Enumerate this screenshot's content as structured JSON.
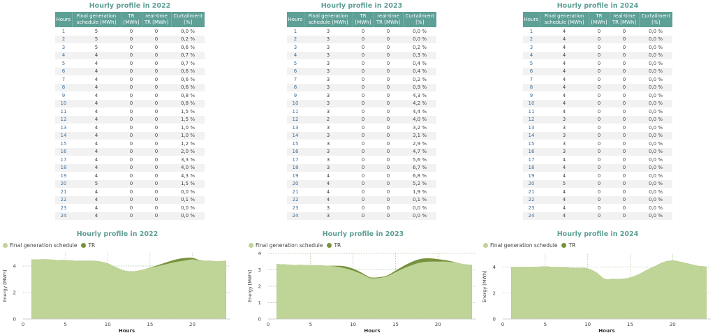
{
  "headers": [
    "Hours",
    "Final generation schedule [MWh]",
    "TR [MWh]",
    "real-time TR [MWh]",
    "Curtailment [%]"
  ],
  "tables": [
    {
      "title": "Hourly profile in 2022",
      "rows": [
        [
          "1",
          "5",
          "0",
          "0",
          "0,0 %"
        ],
        [
          "2",
          "5",
          "0",
          "0",
          "0,2 %"
        ],
        [
          "3",
          "5",
          "0",
          "0",
          "0,6 %"
        ],
        [
          "4",
          "4",
          "0",
          "0",
          "0,7 %"
        ],
        [
          "5",
          "4",
          "0",
          "0",
          "0,7 %"
        ],
        [
          "6",
          "4",
          "0",
          "0",
          "0,6 %"
        ],
        [
          "7",
          "4",
          "0",
          "0",
          "0,6 %"
        ],
        [
          "8",
          "4",
          "0",
          "0",
          "0,6 %"
        ],
        [
          "9",
          "4",
          "0",
          "0",
          "0,8 %"
        ],
        [
          "10",
          "4",
          "0",
          "0",
          "0,8 %"
        ],
        [
          "11",
          "4",
          "0",
          "0",
          "1,5 %"
        ],
        [
          "12",
          "4",
          "0",
          "0",
          "1,5 %"
        ],
        [
          "13",
          "4",
          "0",
          "0",
          "1,0 %"
        ],
        [
          "14",
          "4",
          "0",
          "0",
          "1,0 %"
        ],
        [
          "15",
          "4",
          "0",
          "0",
          "1,2 %"
        ],
        [
          "16",
          "4",
          "0",
          "0",
          "2,0 %"
        ],
        [
          "17",
          "4",
          "0",
          "0",
          "3,3 %"
        ],
        [
          "18",
          "4",
          "0",
          "0",
          "4,0 %"
        ],
        [
          "19",
          "4",
          "0",
          "0",
          "4,3 %"
        ],
        [
          "20",
          "5",
          "0",
          "0",
          "1,5 %"
        ],
        [
          "21",
          "4",
          "0",
          "0",
          "0,0 %"
        ],
        [
          "22",
          "4",
          "0",
          "0",
          "0,1 %"
        ],
        [
          "23",
          "4",
          "0",
          "0",
          "0,0 %"
        ],
        [
          "24",
          "4",
          "0",
          "0",
          "0,0 %"
        ]
      ]
    },
    {
      "title": "Hourly profile in 2023",
      "rows": [
        [
          "1",
          "3",
          "0",
          "0",
          "0,0 %"
        ],
        [
          "2",
          "3",
          "0",
          "0",
          "0,0 %"
        ],
        [
          "3",
          "3",
          "0",
          "0",
          "0,2 %"
        ],
        [
          "4",
          "3",
          "0",
          "0",
          "0,3 %"
        ],
        [
          "5",
          "3",
          "0",
          "0",
          "0,4 %"
        ],
        [
          "6",
          "3",
          "0",
          "0",
          "0,4 %"
        ],
        [
          "7",
          "3",
          "0",
          "0",
          "0,2 %"
        ],
        [
          "8",
          "3",
          "0",
          "0",
          "0,9 %"
        ],
        [
          "9",
          "3",
          "0",
          "0",
          "4,3 %"
        ],
        [
          "10",
          "3",
          "0",
          "0",
          "4,2 %"
        ],
        [
          "11",
          "3",
          "0",
          "0",
          "4,4 %"
        ],
        [
          "12",
          "2",
          "0",
          "0",
          "4,0 %"
        ],
        [
          "13",
          "3",
          "0",
          "0",
          "3,2 %"
        ],
        [
          "14",
          "3",
          "0",
          "0",
          "3,1 %"
        ],
        [
          "15",
          "3",
          "0",
          "0",
          "2,9 %"
        ],
        [
          "16",
          "3",
          "0",
          "0",
          "4,7 %"
        ],
        [
          "17",
          "3",
          "0",
          "0",
          "5,6 %"
        ],
        [
          "18",
          "3",
          "0",
          "0",
          "6,7 %"
        ],
        [
          "19",
          "4",
          "0",
          "0",
          "6,8 %"
        ],
        [
          "20",
          "4",
          "0",
          "0",
          "5,2 %"
        ],
        [
          "21",
          "4",
          "0",
          "0",
          "1,9 %"
        ],
        [
          "22",
          "4",
          "0",
          "0",
          "0,1 %"
        ],
        [
          "23",
          "3",
          "0",
          "0",
          "0,0 %"
        ],
        [
          "24",
          "3",
          "0",
          "0",
          "0,0 %"
        ]
      ]
    },
    {
      "title": "Hourly profile in 2024",
      "rows": [
        [
          "1",
          "4",
          "0",
          "0",
          "0,0 %"
        ],
        [
          "2",
          "4",
          "0",
          "0",
          "0,0 %"
        ],
        [
          "3",
          "4",
          "0",
          "0",
          "0,0 %"
        ],
        [
          "4",
          "4",
          "0",
          "0",
          "0,0 %"
        ],
        [
          "5",
          "4",
          "0",
          "0",
          "0,0 %"
        ],
        [
          "6",
          "4",
          "0",
          "0",
          "0,0 %"
        ],
        [
          "7",
          "4",
          "0",
          "0",
          "0,0 %"
        ],
        [
          "8",
          "4",
          "0",
          "0",
          "0,0 %"
        ],
        [
          "9",
          "4",
          "0",
          "0",
          "0,0 %"
        ],
        [
          "10",
          "4",
          "0",
          "0",
          "0,0 %"
        ],
        [
          "11",
          "4",
          "0",
          "0",
          "0,0 %"
        ],
        [
          "12",
          "3",
          "0",
          "0",
          "0,0 %"
        ],
        [
          "13",
          "3",
          "0",
          "0",
          "0,0 %"
        ],
        [
          "14",
          "3",
          "0",
          "0",
          "0,0 %"
        ],
        [
          "15",
          "3",
          "0",
          "0",
          "0,0 %"
        ],
        [
          "16",
          "3",
          "0",
          "0",
          "0,0 %"
        ],
        [
          "17",
          "4",
          "0",
          "0",
          "0,0 %"
        ],
        [
          "18",
          "4",
          "0",
          "0",
          "0,0 %"
        ],
        [
          "19",
          "4",
          "0",
          "0",
          "0,0 %"
        ],
        [
          "20",
          "5",
          "0",
          "0",
          "0,0 %"
        ],
        [
          "21",
          "4",
          "0",
          "0",
          "0,0 %"
        ],
        [
          "22",
          "4",
          "0",
          "0",
          "0,0 %"
        ],
        [
          "23",
          "4",
          "0",
          "0",
          "0,0 %"
        ],
        [
          "24",
          "4",
          "0",
          "0",
          "0,0 %"
        ]
      ]
    }
  ],
  "chart_data": [
    {
      "type": "area",
      "title": "Hourly profile in 2022",
      "xlabel": "Hours",
      "ylabel": "Energy [MWh]",
      "xlim": [
        0,
        24.5
      ],
      "ylim": [
        0,
        5
      ],
      "xticks": [
        0,
        5,
        10,
        15,
        20
      ],
      "yticks": [
        0,
        2,
        4
      ],
      "grid": true,
      "legend_position": "top-left",
      "x": [
        1,
        2,
        3,
        4,
        5,
        6,
        7,
        8,
        9,
        10,
        11,
        12,
        13,
        14,
        15,
        16,
        17,
        18,
        19,
        20,
        21,
        22,
        23,
        24
      ],
      "series": [
        {
          "name": "Final generation schedule",
          "color": "#bfd497",
          "values": [
            4.5,
            4.5,
            4.5,
            4.45,
            4.45,
            4.4,
            4.4,
            4.4,
            4.35,
            4.2,
            3.9,
            3.65,
            3.6,
            3.7,
            3.85,
            4.0,
            4.15,
            4.3,
            4.4,
            4.5,
            4.4,
            4.4,
            4.35,
            4.4
          ]
        },
        {
          "name": "TR",
          "color": "#77923c",
          "values": [
            0,
            0,
            0,
            0,
            0,
            0,
            0,
            0,
            0,
            0,
            0,
            0,
            0,
            0,
            0.02,
            0.08,
            0.14,
            0.18,
            0.2,
            0.12,
            0.02,
            0,
            0,
            0
          ]
        }
      ]
    },
    {
      "type": "area",
      "title": "Hourly profile in 2023",
      "xlabel": "Hours",
      "ylabel": "Energy [MWh]",
      "xlim": [
        0,
        24.5
      ],
      "ylim": [
        0,
        4
      ],
      "xticks": [
        0,
        5,
        10,
        15,
        20
      ],
      "yticks": [
        0,
        1,
        2,
        3,
        4
      ],
      "grid": true,
      "legend_position": "top-left",
      "x": [
        1,
        2,
        3,
        4,
        5,
        6,
        7,
        8,
        9,
        10,
        11,
        12,
        13,
        14,
        15,
        16,
        17,
        18,
        19,
        20,
        21,
        22,
        23,
        24
      ],
      "series": [
        {
          "name": "Final generation schedule",
          "color": "#bfd497",
          "values": [
            3.35,
            3.33,
            3.3,
            3.3,
            3.28,
            3.27,
            3.25,
            3.2,
            3.1,
            2.95,
            2.75,
            2.5,
            2.5,
            2.6,
            2.85,
            3.1,
            3.3,
            3.45,
            3.5,
            3.5,
            3.5,
            3.45,
            3.35,
            3.3
          ]
        },
        {
          "name": "TR",
          "color": "#77923c",
          "values": [
            0,
            0,
            0,
            0,
            0,
            0,
            0,
            0.05,
            0.12,
            0.12,
            0.08,
            0.05,
            0.05,
            0.05,
            0.1,
            0.15,
            0.2,
            0.22,
            0.2,
            0.15,
            0.08,
            0.02,
            0,
            0
          ]
        }
      ]
    },
    {
      "type": "area",
      "title": "Hourly profile in 2024",
      "xlabel": "Hours",
      "ylabel": "Energy [MWh]",
      "xlim": [
        0,
        24.5
      ],
      "ylim": [
        0,
        5
      ],
      "xticks": [
        0,
        5,
        10,
        15,
        20
      ],
      "yticks": [
        0,
        2,
        4
      ],
      "grid": true,
      "legend_position": "top-left",
      "x": [
        1,
        2,
        3,
        4,
        5,
        6,
        7,
        8,
        9,
        10,
        11,
        12,
        13,
        14,
        15,
        16,
        17,
        18,
        19,
        20,
        21,
        22,
        23,
        24
      ],
      "series": [
        {
          "name": "Final generation schedule",
          "color": "#bfd497",
          "values": [
            4.0,
            4.0,
            4.0,
            4.02,
            4.05,
            4.0,
            4.0,
            3.95,
            3.95,
            3.9,
            3.6,
            3.1,
            3.1,
            3.1,
            3.2,
            3.45,
            3.8,
            4.1,
            4.4,
            4.5,
            4.4,
            4.25,
            4.1,
            4.05
          ]
        },
        {
          "name": "TR",
          "color": "#77923c",
          "values": [
            0,
            0,
            0,
            0,
            0,
            0,
            0,
            0,
            0,
            0,
            0,
            0,
            0,
            0,
            0,
            0,
            0,
            0,
            0,
            0,
            0,
            0,
            0,
            0
          ]
        }
      ]
    }
  ]
}
